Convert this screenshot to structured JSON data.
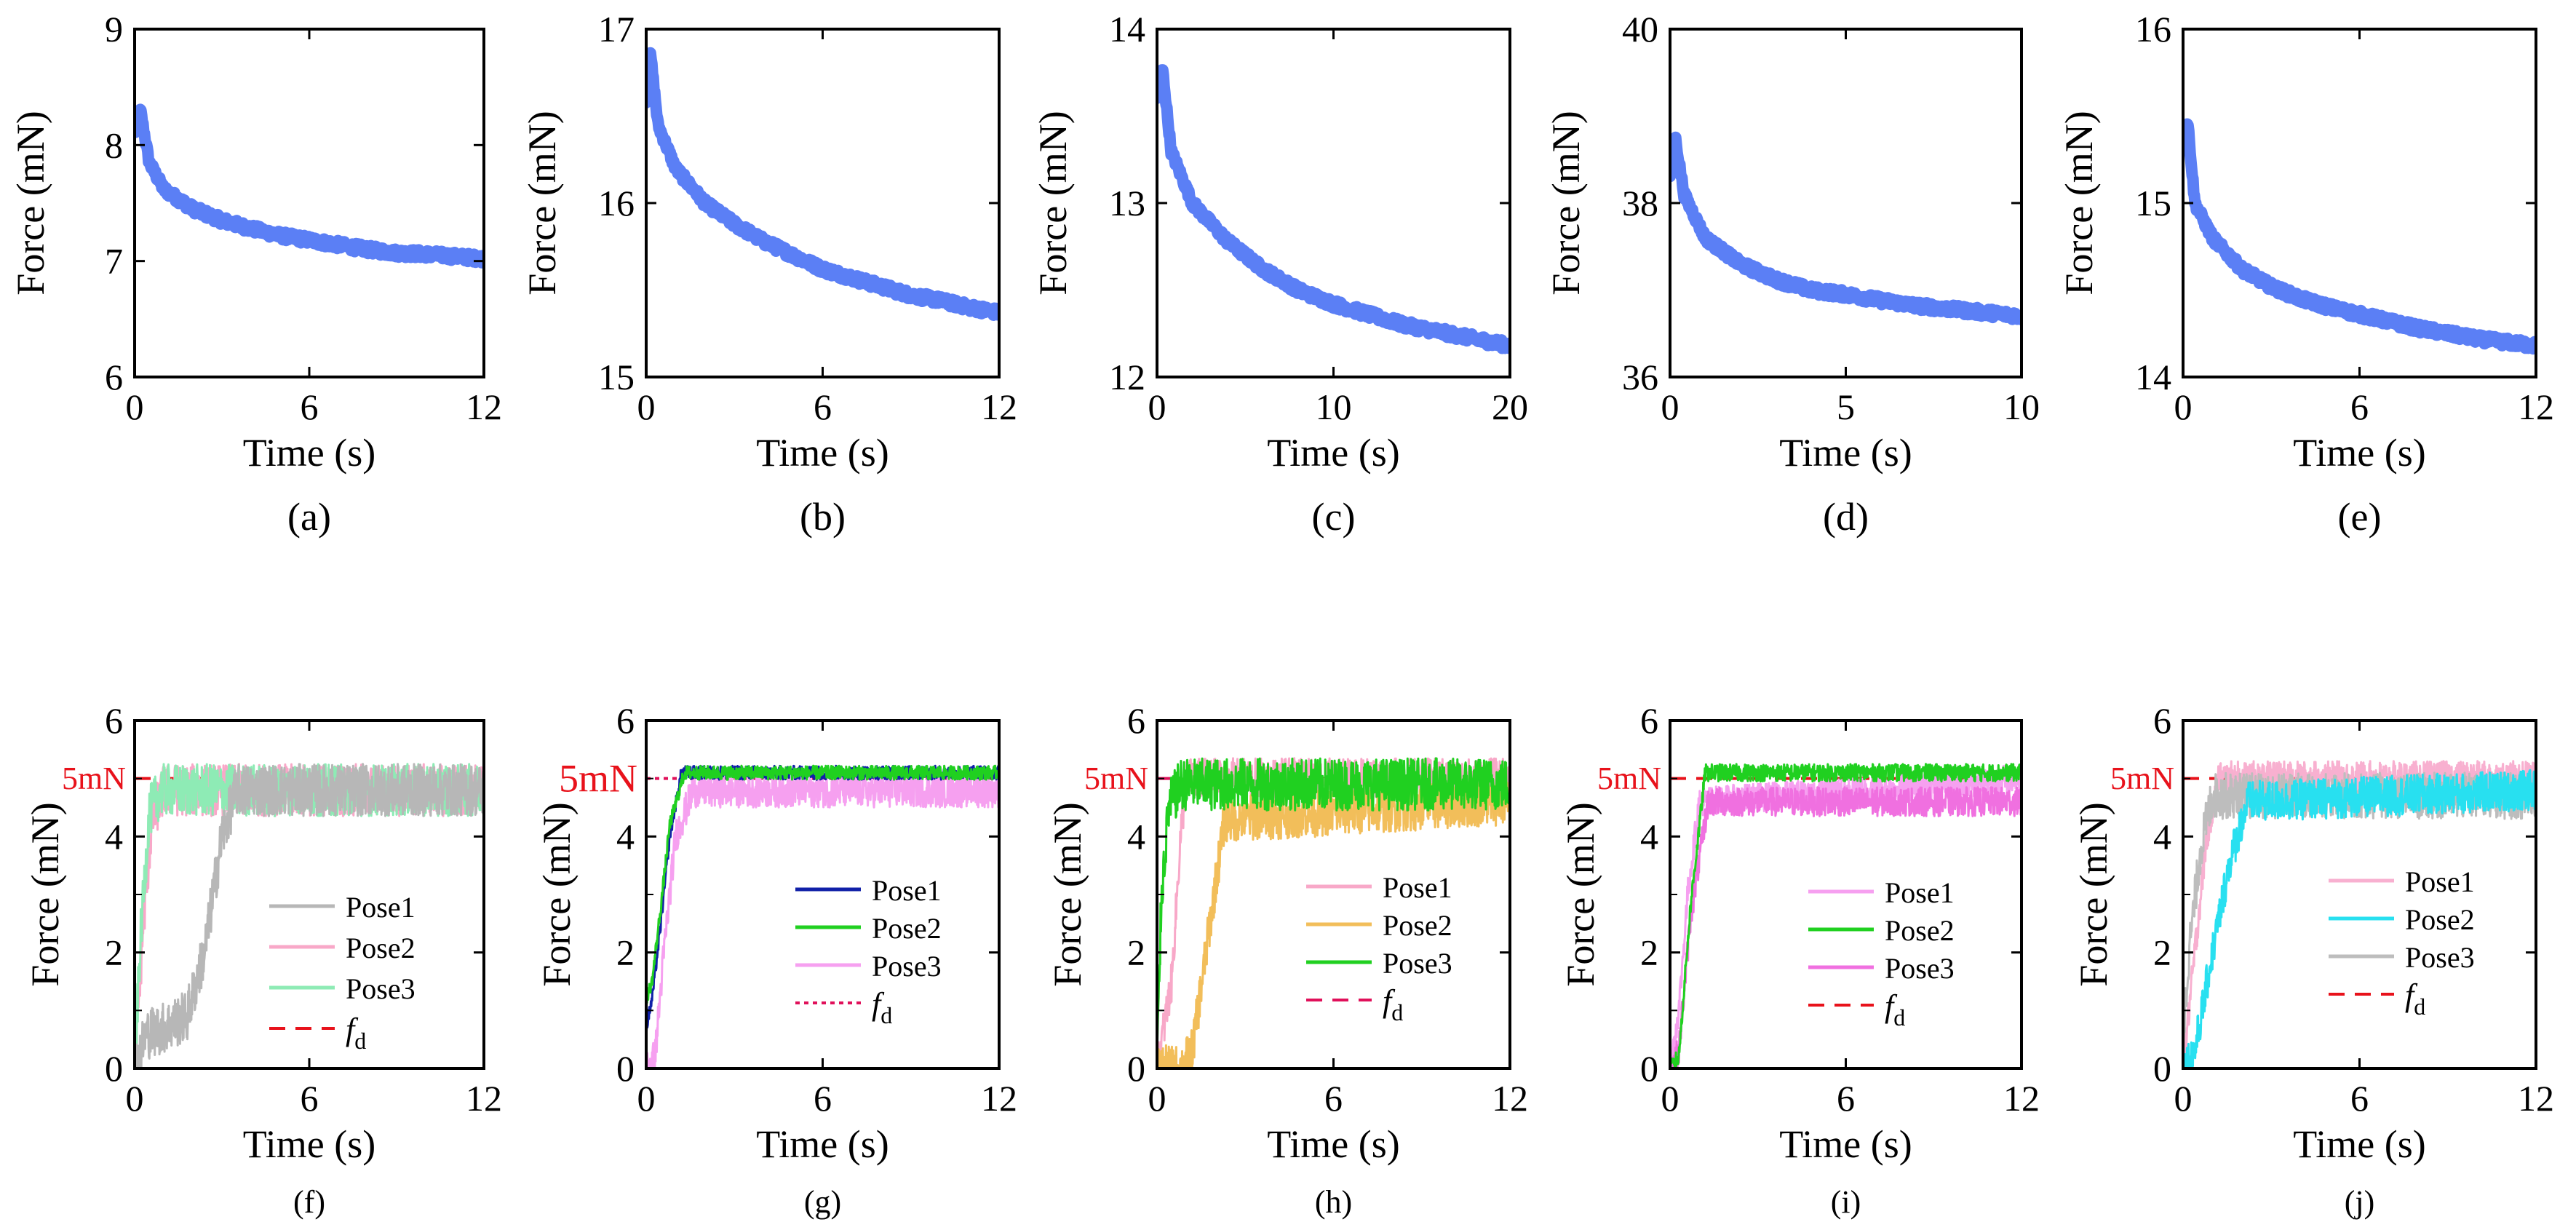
{
  "colors": {
    "axis": "#000000",
    "relax": "#5B7FF5",
    "ref_line": "#E8121B",
    "ref_label": "#E8121B",
    "gray": "#B7B7B7",
    "pink": "#F8A8C8",
    "mint": "#8EEBB5",
    "navy": "#1020A8",
    "green": "#20D020",
    "violet": "#F6A0F0",
    "orange": "#F2BE5A",
    "magenta": "#F070E0",
    "cyan": "#28E0F0",
    "lightpink": "#F8B0D0",
    "lightgray": "#BDBDBD"
  },
  "chart_data": [
    {
      "id": "a",
      "type": "line",
      "caption": "(a)",
      "xlabel": "Time (s)",
      "ylabel": "Force (mN)",
      "xlim": [
        0,
        12
      ],
      "ylim": [
        6,
        9
      ],
      "xticks": [
        0,
        6,
        12
      ],
      "yticks": [
        6,
        7,
        8,
        9
      ],
      "series": [
        {
          "name": "force",
          "peak": 8.3,
          "start": 8.1,
          "end": 7.02,
          "tau": 3.5,
          "noise": 0.03,
          "x": [
            0,
            0.2,
            0.5,
            1,
            2,
            3,
            4,
            5,
            6,
            7,
            8,
            9,
            10,
            11,
            12
          ],
          "y": [
            8.1,
            8.3,
            7.85,
            7.62,
            7.45,
            7.35,
            7.28,
            7.22,
            7.18,
            7.14,
            7.1,
            7.07,
            7.06,
            7.04,
            7.02
          ]
        }
      ]
    },
    {
      "id": "b",
      "type": "line",
      "caption": "(b)",
      "xlabel": "Time (s)",
      "ylabel": "Force (mN)",
      "xlim": [
        0,
        12
      ],
      "ylim": [
        15,
        17
      ],
      "xticks": [
        0,
        6,
        12
      ],
      "yticks": [
        15,
        16,
        17
      ],
      "series": [
        {
          "name": "force",
          "x": [
            0,
            0.15,
            0.4,
            1,
            2,
            3,
            4,
            5,
            6,
            7,
            8,
            9,
            10,
            11,
            12
          ],
          "y": [
            16.6,
            16.85,
            16.45,
            16.2,
            16.0,
            15.88,
            15.78,
            15.7,
            15.62,
            15.57,
            15.52,
            15.47,
            15.44,
            15.4,
            15.37
          ]
        }
      ]
    },
    {
      "id": "c",
      "type": "line",
      "caption": "(c)",
      "xlabel": "Time (s)",
      "ylabel": "Force (mN)",
      "xlim": [
        0,
        20
      ],
      "ylim": [
        12,
        14
      ],
      "xticks": [
        0,
        10,
        20
      ],
      "yticks": [
        12,
        13,
        14
      ],
      "series": [
        {
          "name": "force",
          "x": [
            0,
            0.3,
            0.8,
            2,
            4,
            6,
            8,
            10,
            12,
            14,
            16,
            18,
            20
          ],
          "y": [
            13.6,
            13.78,
            13.3,
            13.0,
            12.78,
            12.62,
            12.5,
            12.42,
            12.36,
            12.3,
            12.26,
            12.22,
            12.18
          ]
        }
      ]
    },
    {
      "id": "d",
      "type": "line",
      "caption": "(d)",
      "xlabel": "Time (s)",
      "ylabel": "Force (mN)",
      "xlim": [
        0,
        10
      ],
      "ylim": [
        36,
        40
      ],
      "xticks": [
        0,
        5,
        10
      ],
      "yticks": [
        36,
        38,
        40
      ],
      "series": [
        {
          "name": "force",
          "x": [
            0,
            0.15,
            0.4,
            1,
            2,
            3,
            4,
            5,
            6,
            7,
            8,
            9,
            10
          ],
          "y": [
            38.3,
            38.75,
            38.1,
            37.6,
            37.3,
            37.12,
            37.0,
            36.95,
            36.88,
            36.82,
            36.78,
            36.74,
            36.7
          ]
        }
      ]
    },
    {
      "id": "e",
      "type": "line",
      "caption": "(e)",
      "xlabel": "Time (s)",
      "ylabel": "Force (mN)",
      "xlim": [
        0,
        12
      ],
      "ylim": [
        14,
        16
      ],
      "xticks": [
        0,
        6,
        12
      ],
      "yticks": [
        14,
        15,
        16
      ],
      "series": [
        {
          "name": "force",
          "x": [
            0,
            0.15,
            0.4,
            1,
            2,
            3,
            4,
            5,
            6,
            7,
            8,
            9,
            10,
            11,
            12
          ],
          "y": [
            15.3,
            15.48,
            15.0,
            14.8,
            14.62,
            14.52,
            14.45,
            14.4,
            14.36,
            14.32,
            14.28,
            14.25,
            14.22,
            14.2,
            14.18
          ]
        }
      ]
    },
    {
      "id": "f",
      "type": "line",
      "caption": "(f)",
      "xlabel": "Time (s)",
      "ylabel": "Force (mN)",
      "xlim": [
        0,
        12
      ],
      "ylim": [
        0,
        6
      ],
      "xticks": [
        0,
        6,
        12
      ],
      "yticks": [
        0,
        2,
        4,
        6
      ],
      "ref_value": 5,
      "ref_label": "5mN",
      "series": [
        {
          "name": "Pose1",
          "x": [
            0,
            0.4,
            1,
            1.8,
            2.4,
            3.0,
            3.5,
            12
          ],
          "y": [
            0,
            0.6,
            0.7,
            0.9,
            2.0,
            4.0,
            4.8,
            4.8
          ],
          "noise": 0.45
        },
        {
          "name": "Pose2",
          "x": [
            0,
            0.3,
            0.6,
            1.0,
            12
          ],
          "y": [
            0,
            2.5,
            4.3,
            4.8,
            4.8
          ],
          "noise": 0.45
        },
        {
          "name": "Pose3",
          "x": [
            0,
            0.2,
            0.5,
            0.9,
            12
          ],
          "y": [
            0,
            2.2,
            4.4,
            4.8,
            4.8
          ],
          "noise": 0.45
        }
      ],
      "legend": [
        "Pose1",
        "Pose2",
        "Pose3",
        "f_d"
      ]
    },
    {
      "id": "g",
      "type": "line",
      "caption": "(g)",
      "xlabel": "Time (s)",
      "ylabel": "Force (mN)",
      "xlim": [
        0,
        12
      ],
      "ylim": [
        0,
        6
      ],
      "xticks": [
        0,
        6,
        12
      ],
      "yticks": [
        0,
        2,
        4,
        6
      ],
      "ref_value": 5,
      "ref_label": "5mN",
      "series": [
        {
          "name": "Pose1",
          "x": [
            0,
            0.2,
            0.5,
            0.8,
            1.2,
            12
          ],
          "y": [
            0.7,
            1.2,
            2.5,
            4.0,
            5.1,
            5.1
          ],
          "noise": 0.12
        },
        {
          "name": "Pose2",
          "x": [
            0,
            0.2,
            0.5,
            0.8,
            1.3,
            12
          ],
          "y": [
            1.2,
            1.5,
            2.8,
            4.2,
            5.1,
            5.1
          ],
          "noise": 0.12
        },
        {
          "name": "Pose3",
          "x": [
            0,
            0.3,
            0.6,
            1.0,
            1.6,
            12
          ],
          "y": [
            0,
            0.2,
            2.0,
            4.0,
            4.8,
            4.8
          ],
          "noise": 0.3
        }
      ],
      "legend": [
        "Pose1",
        "Pose2",
        "Pose3",
        "f_d"
      ]
    },
    {
      "id": "h",
      "type": "line",
      "caption": "(h)",
      "xlabel": "Time (s)",
      "ylabel": "Force (mN)",
      "xlim": [
        0,
        12
      ],
      "ylim": [
        0,
        6
      ],
      "xticks": [
        0,
        6,
        12
      ],
      "yticks": [
        0,
        2,
        4,
        6
      ],
      "ref_value": 5,
      "ref_label": "5mN",
      "series": [
        {
          "name": "Pose1",
          "x": [
            0,
            0.5,
            0.8,
            1.0,
            12
          ],
          "y": [
            0,
            1.5,
            4.0,
            5.0,
            5.0
          ],
          "noise": 0.35
        },
        {
          "name": "Pose2",
          "x": [
            0,
            0.8,
            1.2,
            1.8,
            2.3,
            12
          ],
          "y": [
            0,
            0,
            0.3,
            2.5,
            4.3,
            4.6
          ],
          "noise": 0.4
        },
        {
          "name": "Pose3",
          "x": [
            0,
            0.15,
            0.4,
            0.8,
            12
          ],
          "y": [
            0,
            3.0,
            4.5,
            4.9,
            4.9
          ],
          "noise": 0.45
        }
      ],
      "legend": [
        "Pose1",
        "Pose2",
        "Pose3",
        "f_d"
      ]
    },
    {
      "id": "i",
      "type": "line",
      "caption": "(i)",
      "xlabel": "Time (s)",
      "ylabel": "Force (mN)",
      "xlim": [
        0,
        12
      ],
      "ylim": [
        0,
        6
      ],
      "xticks": [
        0,
        6,
        12
      ],
      "yticks": [
        0,
        2,
        4,
        6
      ],
      "ref_value": 5,
      "ref_label": "5mN",
      "series": [
        {
          "name": "Pose1",
          "x": [
            0,
            0.3,
            0.6,
            1.0,
            12
          ],
          "y": [
            0,
            1.0,
            3.0,
            4.6,
            5.0
          ],
          "noise": 0.25
        },
        {
          "name": "Pose2",
          "x": [
            0,
            0.3,
            0.7,
            1.2,
            12
          ],
          "y": [
            0,
            0.2,
            2.8,
            5.1,
            5.1
          ],
          "noise": 0.15
        },
        {
          "name": "Pose3",
          "x": [
            0,
            0.3,
            0.7,
            1.3,
            12
          ],
          "y": [
            0,
            0.3,
            2.6,
            4.6,
            4.6
          ],
          "noise": 0.25
        }
      ],
      "legend": [
        "Pose1",
        "Pose2",
        "Pose3",
        "f_d"
      ]
    },
    {
      "id": "j",
      "type": "line",
      "caption": "(j)",
      "xlabel": "Time (s)",
      "ylabel": "Force (mN)",
      "xlim": [
        0,
        12
      ],
      "ylim": [
        0,
        6
      ],
      "xticks": [
        0,
        6,
        12
      ],
      "yticks": [
        0,
        2,
        4,
        6
      ],
      "ref_value": 5,
      "ref_label": "5mN",
      "series": [
        {
          "name": "Pose1",
          "x": [
            0,
            0.4,
            0.8,
            1.2,
            12
          ],
          "y": [
            0,
            2.0,
            4.0,
            5.0,
            5.0
          ],
          "noise": 0.3
        },
        {
          "name": "Pose2",
          "x": [
            0,
            0.4,
            1.0,
            1.6,
            2.2,
            12
          ],
          "y": [
            0,
            0.3,
            2.0,
            3.6,
            4.6,
            4.8
          ],
          "noise": 0.35
        },
        {
          "name": "Pose3",
          "x": [
            0,
            0.2,
            0.6,
            1.0,
            12
          ],
          "y": [
            0.5,
            2.0,
            3.8,
            4.7,
            4.7
          ],
          "noise": 0.4
        }
      ],
      "legend": [
        "Pose1",
        "Pose2",
        "Pose3",
        "f_d"
      ]
    }
  ],
  "legend_ref": {
    "text": "f",
    "sub": "d"
  }
}
